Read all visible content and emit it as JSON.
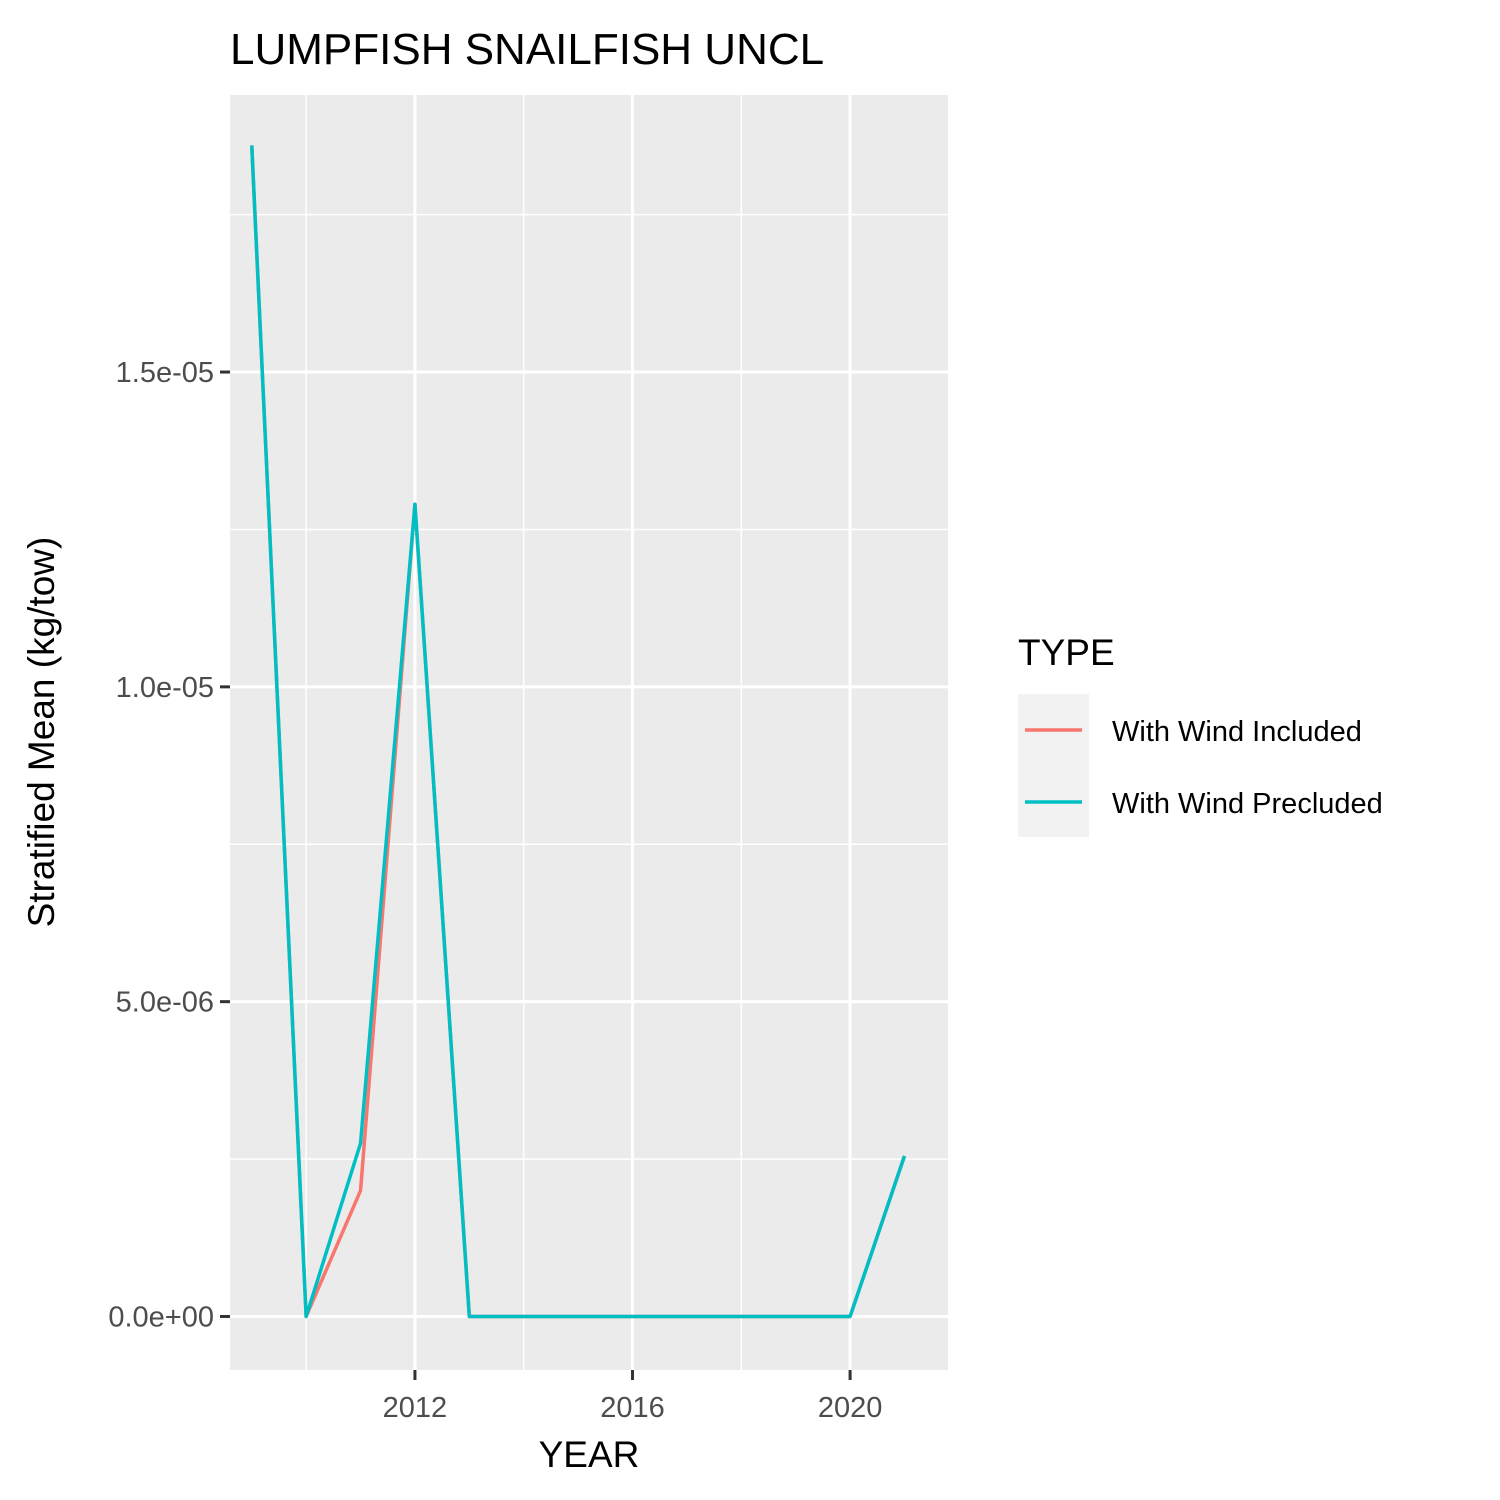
{
  "chart_data": {
    "type": "line",
    "title": "LUMPFISH SNAILFISH UNCL",
    "xlabel": "YEAR",
    "ylabel": "Stratified Mean (kg/tow)",
    "xlim": [
      2008.6,
      2021.8
    ],
    "ylim": [
      -8.5e-07,
      1.94e-05
    ],
    "x_ticks": [
      2012,
      2016,
      2020
    ],
    "x_tick_labels": [
      "2012",
      "2016",
      "2020"
    ],
    "x_minor_ticks": [
      2010,
      2014,
      2018
    ],
    "y_ticks": [
      0,
      5e-06,
      1e-05,
      1.5e-05
    ],
    "y_tick_labels": [
      "0.0e+00",
      "5.0e-06",
      "1.0e-05",
      "1.5e-05"
    ],
    "y_minor_ticks": [
      2.5e-06,
      7.5e-06,
      1.25e-05,
      1.75e-05
    ],
    "grid": true,
    "legend": {
      "title": "TYPE",
      "position": "right"
    },
    "series": [
      {
        "name": "With Wind Included",
        "color": "#F8766D",
        "x": [
          2009,
          2010,
          2011,
          2012,
          2013,
          2014,
          2015,
          2016,
          2017,
          2018,
          2019,
          2020,
          2021
        ],
        "values": [
          1.86e-05,
          0,
          2e-06,
          1.29e-05,
          0,
          0,
          0,
          0,
          0,
          0,
          0,
          0,
          2.55e-06
        ]
      },
      {
        "name": "With Wind Precluded",
        "color": "#00BFC4",
        "x": [
          2009,
          2010,
          2011,
          2012,
          2013,
          2014,
          2015,
          2016,
          2017,
          2018,
          2019,
          2020,
          2021
        ],
        "values": [
          1.86e-05,
          0,
          2.75e-06,
          1.29e-05,
          0,
          0,
          0,
          0,
          0,
          0,
          0,
          0,
          2.55e-06
        ]
      }
    ]
  },
  "colors": {
    "panel_background": "#EBEBEB",
    "grid": "#FFFFFF",
    "legend_key_background": "#F2F2F2"
  }
}
